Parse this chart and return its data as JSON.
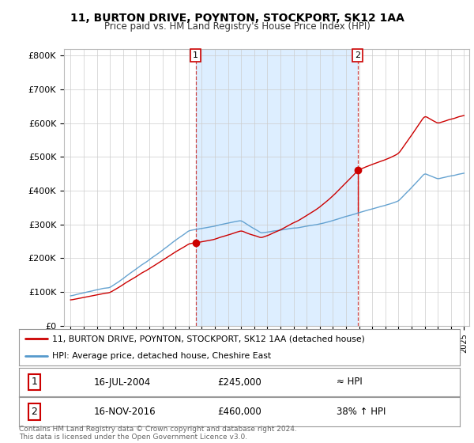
{
  "title": "11, BURTON DRIVE, POYNTON, STOCKPORT, SK12 1AA",
  "subtitle": "Price paid vs. HM Land Registry's House Price Index (HPI)",
  "legend_line1": "11, BURTON DRIVE, POYNTON, STOCKPORT, SK12 1AA (detached house)",
  "legend_line2": "HPI: Average price, detached house, Cheshire East",
  "annotation1_date": "16-JUL-2004",
  "annotation1_price": "£245,000",
  "annotation1_hpi": "≈ HPI",
  "annotation2_date": "16-NOV-2016",
  "annotation2_price": "£460,000",
  "annotation2_hpi": "38% ↑ HPI",
  "footer": "Contains HM Land Registry data © Crown copyright and database right 2024.\nThis data is licensed under the Open Government Licence v3.0.",
  "red_color": "#cc0000",
  "blue_color": "#5599cc",
  "dashed_vline_color": "#cc4444",
  "shade_color": "#ddeeff",
  "background_color": "#ffffff",
  "ylim": [
    0,
    820000
  ],
  "yticks": [
    0,
    100000,
    200000,
    300000,
    400000,
    500000,
    600000,
    700000,
    800000
  ],
  "ytick_labels": [
    "£0",
    "£100K",
    "£200K",
    "£300K",
    "£400K",
    "£500K",
    "£600K",
    "£700K",
    "£800K"
  ],
  "sale1_year": 2004.54,
  "sale1_price": 245000,
  "sale2_year": 2016.88,
  "sale2_price": 460000,
  "xstart": 1995,
  "xend": 2025
}
